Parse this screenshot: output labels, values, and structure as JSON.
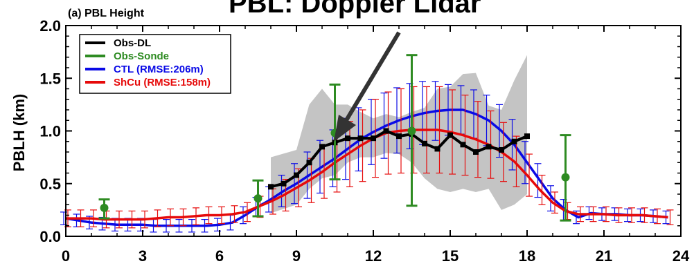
{
  "chart_data": {
    "type": "line",
    "panel_label": "(a) PBL Height",
    "title": "PBL: Doppler Lidar",
    "ylabel": "PBLH (km)",
    "xlabel": "",
    "xlim": [
      0,
      24
    ],
    "ylim": [
      0,
      2.0
    ],
    "x_ticks": [
      "0",
      "3",
      "6",
      "9",
      "12",
      "15",
      "18",
      "21",
      "24"
    ],
    "y_ticks": [
      "0.0",
      "0.5",
      "1.0",
      "1.5",
      "2.0"
    ],
    "legend_position": "top-left",
    "colors": {
      "obs_dl": "#000000",
      "obs_sonde": "#2e8b22",
      "ctl": "#0a0ae6",
      "shcu": "#e60a0a",
      "spread": "#c4c4c4"
    },
    "series": [
      {
        "name": "Obs-DL",
        "x": [
          8,
          8.5,
          9,
          9.5,
          10,
          10.5,
          11,
          11.5,
          12,
          12.5,
          13,
          13.5,
          14,
          14.5,
          15,
          15.5,
          16,
          16.5,
          17,
          17.5,
          18
        ],
        "values": [
          0.47,
          0.5,
          0.58,
          0.7,
          0.85,
          0.89,
          0.93,
          0.93,
          0.93,
          1.0,
          0.95,
          0.97,
          0.88,
          0.83,
          0.96,
          0.87,
          0.8,
          0.85,
          0.82,
          0.9,
          0.95
        ]
      },
      {
        "name": "Obs-Sonde",
        "x": [
          1.5,
          7.5,
          10.5,
          13.5,
          19.5
        ],
        "values": [
          0.27,
          0.36,
          0.98,
          1.0,
          0.56
        ],
        "err_low": [
          0.17,
          0.19,
          0.54,
          0.29,
          0.15
        ],
        "err_high": [
          0.35,
          0.53,
          1.44,
          1.72,
          0.96
        ]
      },
      {
        "name": "CTL (RMSE:206m)",
        "x": [
          0,
          0.5,
          1,
          1.5,
          2,
          2.5,
          3,
          3.5,
          4,
          4.5,
          5,
          5.5,
          6,
          6.5,
          7,
          7.5,
          8,
          8.5,
          9,
          9.5,
          10,
          10.5,
          11,
          11.5,
          12,
          12.5,
          13,
          13.5,
          14,
          14.5,
          15,
          15.5,
          16,
          16.5,
          17,
          17.5,
          18,
          18.5,
          19,
          19.5,
          20,
          20.5,
          21,
          21.5,
          22,
          22.5,
          23,
          23.5
        ],
        "values": [
          0.17,
          0.15,
          0.13,
          0.12,
          0.11,
          0.11,
          0.11,
          0.1,
          0.1,
          0.1,
          0.1,
          0.1,
          0.11,
          0.13,
          0.2,
          0.28,
          0.35,
          0.43,
          0.5,
          0.58,
          0.66,
          0.74,
          0.83,
          0.92,
          0.99,
          1.05,
          1.1,
          1.14,
          1.17,
          1.19,
          1.2,
          1.2,
          1.16,
          1.1,
          1.0,
          0.87,
          0.7,
          0.53,
          0.36,
          0.25,
          0.18,
          0.22,
          0.21,
          0.21,
          0.2,
          0.2,
          0.19,
          0.18
        ],
        "err": [
          0.06,
          0.06,
          0.06,
          0.06,
          0.06,
          0.06,
          0.06,
          0.06,
          0.06,
          0.06,
          0.06,
          0.06,
          0.06,
          0.07,
          0.08,
          0.09,
          0.12,
          0.15,
          0.19,
          0.22,
          0.25,
          0.27,
          0.29,
          0.3,
          0.31,
          0.31,
          0.31,
          0.31,
          0.3,
          0.28,
          0.24,
          0.23,
          0.23,
          0.24,
          0.25,
          0.24,
          0.2,
          0.16,
          0.12,
          0.1,
          0.06,
          0.06,
          0.06,
          0.06,
          0.06,
          0.06,
          0.06,
          0.06
        ]
      },
      {
        "name": "ShCu (RMSE:158m)",
        "x": [
          0,
          0.5,
          1,
          1.5,
          2,
          2.5,
          3,
          3.5,
          4,
          4.5,
          5,
          5.5,
          6,
          6.5,
          7,
          7.5,
          8,
          8.5,
          9,
          9.5,
          10,
          10.5,
          11,
          11.5,
          12,
          12.5,
          13,
          13.5,
          14,
          14.5,
          15,
          15.5,
          16,
          16.5,
          17,
          17.5,
          18,
          18.5,
          19,
          19.5,
          20,
          20.5,
          21,
          21.5,
          22,
          22.5,
          23,
          23.5
        ],
        "values": [
          0.17,
          0.17,
          0.17,
          0.16,
          0.16,
          0.16,
          0.16,
          0.17,
          0.18,
          0.18,
          0.19,
          0.2,
          0.2,
          0.21,
          0.23,
          0.28,
          0.33,
          0.39,
          0.46,
          0.53,
          0.61,
          0.7,
          0.78,
          0.86,
          0.93,
          0.98,
          1.0,
          1.01,
          1.01,
          1.01,
          0.99,
          0.96,
          0.92,
          0.87,
          0.8,
          0.71,
          0.58,
          0.44,
          0.32,
          0.24,
          0.21,
          0.21,
          0.21,
          0.2,
          0.2,
          0.2,
          0.19,
          0.18
        ],
        "err": [
          0.08,
          0.08,
          0.08,
          0.08,
          0.08,
          0.08,
          0.08,
          0.08,
          0.08,
          0.08,
          0.08,
          0.08,
          0.08,
          0.08,
          0.09,
          0.1,
          0.12,
          0.15,
          0.18,
          0.21,
          0.25,
          0.28,
          0.31,
          0.34,
          0.37,
          0.39,
          0.4,
          0.41,
          0.41,
          0.41,
          0.4,
          0.38,
          0.36,
          0.32,
          0.28,
          0.24,
          0.2,
          0.14,
          0.1,
          0.08,
          0.07,
          0.07,
          0.07,
          0.07,
          0.07,
          0.07,
          0.07,
          0.07
        ]
      }
    ],
    "spread_band": {
      "x": [
        8,
        9,
        9.5,
        10,
        10.5,
        11,
        11.5,
        12,
        12.5,
        13,
        13.5,
        14,
        14.5,
        15,
        15.5,
        16,
        16.5,
        17,
        17.5,
        18
      ],
      "upper": [
        0.75,
        0.82,
        1.25,
        1.4,
        1.25,
        1.25,
        1.18,
        1.12,
        1.16,
        1.13,
        1.18,
        1.22,
        1.4,
        1.42,
        1.54,
        1.55,
        1.24,
        1.2,
        1.48,
        1.72
      ],
      "lower": [
        0.22,
        0.3,
        0.45,
        0.55,
        0.58,
        0.7,
        0.75,
        0.75,
        0.79,
        0.78,
        0.7,
        0.55,
        0.45,
        0.42,
        0.45,
        0.42,
        0.45,
        0.25,
        0.3,
        0.4
      ]
    }
  }
}
